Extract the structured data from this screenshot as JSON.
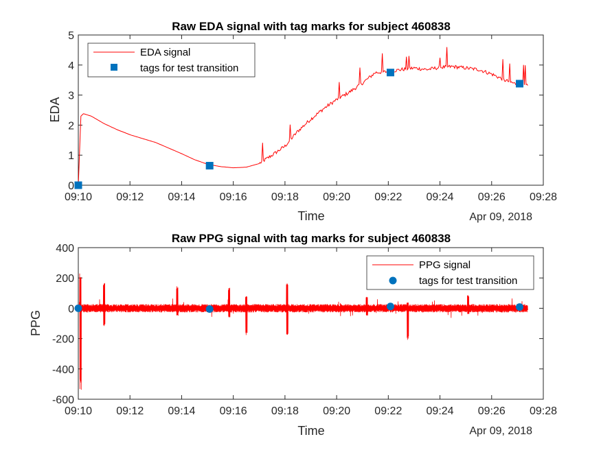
{
  "colors": {
    "signal": "#ff0000",
    "tag": "#0072bd",
    "axis": "#262626",
    "background": "#ffffff"
  },
  "chart_data": [
    {
      "id": "eda",
      "type": "line",
      "title": "Raw EDA signal with tag marks for subject 460838",
      "xlabel": "Time",
      "ylabel": "EDA",
      "date_label": "Apr 09, 2018",
      "xlim": [
        "09:10",
        "09:28"
      ],
      "ylim": [
        0,
        5
      ],
      "xticks": [
        "09:10",
        "09:12",
        "09:14",
        "09:16",
        "09:18",
        "09:20",
        "09:22",
        "09:24",
        "09:26",
        "09:28"
      ],
      "yticks": [
        "0",
        "1",
        "2",
        "3",
        "4",
        "5"
      ],
      "legend_position": "top-left",
      "grid": false,
      "series": [
        {
          "name": "EDA signal",
          "style": "line",
          "color": "#ff0000",
          "x": [
            "09:10:00",
            "09:10:06",
            "09:10:12",
            "09:10:30",
            "09:11:00",
            "09:11:30",
            "09:12:00",
            "09:13:00",
            "09:14:00",
            "09:14:30",
            "09:15:00",
            "09:15:30",
            "09:16:00",
            "09:16:30",
            "09:17:00",
            "09:17:30",
            "09:18:00",
            "09:18:30",
            "09:19:00",
            "09:19:30",
            "09:20:00",
            "09:20:30",
            "09:21:00",
            "09:21:30",
            "09:22:00",
            "09:22:30",
            "09:23:00",
            "09:23:30",
            "09:24:00",
            "09:24:30",
            "09:25:00",
            "09:25:30",
            "09:26:00",
            "09:26:30",
            "09:27:00",
            "09:27:24"
          ],
          "y": [
            0.0,
            2.3,
            2.38,
            2.3,
            2.05,
            1.85,
            1.68,
            1.42,
            1.05,
            0.85,
            0.7,
            0.62,
            0.58,
            0.6,
            0.72,
            1.0,
            1.3,
            1.8,
            2.2,
            2.55,
            2.85,
            3.1,
            3.4,
            3.75,
            3.78,
            3.85,
            3.9,
            3.85,
            3.92,
            3.95,
            3.9,
            3.85,
            3.7,
            3.5,
            3.35,
            3.32
          ]
        },
        {
          "name": "tags for test transition",
          "style": "square",
          "color": "#0072bd",
          "x": [
            "09:10:00",
            "09:15:05",
            "09:22:05",
            "09:27:05"
          ],
          "y": [
            0.0,
            0.65,
            3.75,
            3.38
          ]
        }
      ]
    },
    {
      "id": "ppg",
      "type": "line",
      "title": "Raw PPG signal with tag marks for subject 460838",
      "xlabel": "Time",
      "ylabel": "PPG",
      "date_label": "Apr 09, 2018",
      "xlim": [
        "09:10",
        "09:28"
      ],
      "ylim": [
        -600,
        400
      ],
      "xticks": [
        "09:10",
        "09:12",
        "09:14",
        "09:16",
        "09:18",
        "09:20",
        "09:22",
        "09:24",
        "09:26",
        "09:28"
      ],
      "yticks": [
        "-600",
        "-400",
        "-200",
        "0",
        "200",
        "400"
      ],
      "legend_position": "top-right",
      "grid": false,
      "series": [
        {
          "name": "PPG signal",
          "style": "line",
          "color": "#ff0000",
          "x_range": [
            "09:10:00",
            "09:27:24"
          ],
          "baseline": 0,
          "noise_amplitude": 25,
          "spikes": [
            {
              "x": "09:10:05",
              "max": 230,
              "min": -550
            },
            {
              "x": "09:11:00",
              "max": 170,
              "min": -120
            },
            {
              "x": "09:13:50",
              "max": 150,
              "min": -50
            },
            {
              "x": "09:15:50",
              "max": 140,
              "min": -60
            },
            {
              "x": "09:16:30",
              "max": 80,
              "min": -180
            },
            {
              "x": "09:18:05",
              "max": 175,
              "min": -185
            },
            {
              "x": "09:21:10",
              "max": 80,
              "min": -50
            },
            {
              "x": "09:22:45",
              "max": 40,
              "min": -210
            },
            {
              "x": "09:25:05",
              "max": 90,
              "min": -40
            }
          ]
        },
        {
          "name": "tags for test transition",
          "style": "circle",
          "color": "#0072bd",
          "x": [
            "09:10:00",
            "09:15:05",
            "09:22:05",
            "09:27:05"
          ],
          "y": [
            0,
            -5,
            12,
            8
          ]
        }
      ]
    }
  ]
}
